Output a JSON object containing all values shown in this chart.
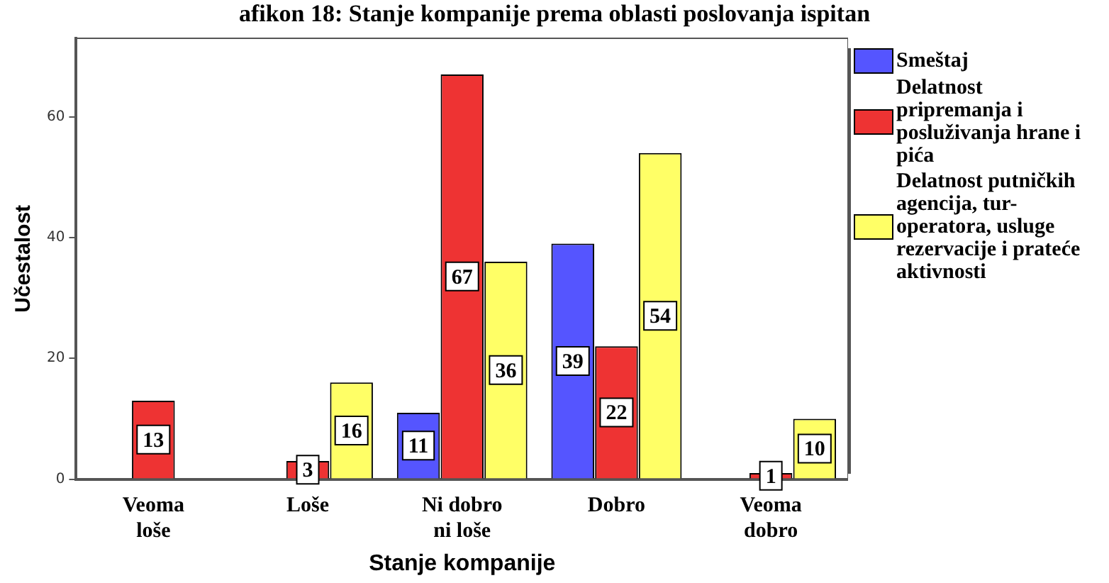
{
  "chart_data": {
    "type": "bar",
    "title": "afikon 18: Stanje kompanije prema oblasti poslovanja ispitan",
    "xlabel": "Stanje kompanije",
    "ylabel": "Učestalost",
    "categories": [
      "Veoma loše",
      "Loše",
      "Ni dobro ni loše",
      "Dobro",
      "Veoma dobro"
    ],
    "series": [
      {
        "name": "Smeštaj",
        "color": "#5555ff",
        "values": [
          null,
          null,
          11,
          39,
          null
        ]
      },
      {
        "name": "Delatnost pripremanja i posluživanja hrane i pića",
        "color": "#ee3333",
        "values": [
          13,
          3,
          67,
          22,
          1
        ]
      },
      {
        "name": "Delatnost putničkih agencija, tur-operatora, usluge rezervacije i prateće aktivnosti",
        "color": "#ffff66",
        "values": [
          null,
          16,
          36,
          54,
          10
        ]
      }
    ],
    "ylim": [
      0,
      73
    ],
    "yticks": [
      0,
      20,
      40,
      60
    ],
    "grid": false,
    "legend": "right",
    "data_labels": true
  }
}
